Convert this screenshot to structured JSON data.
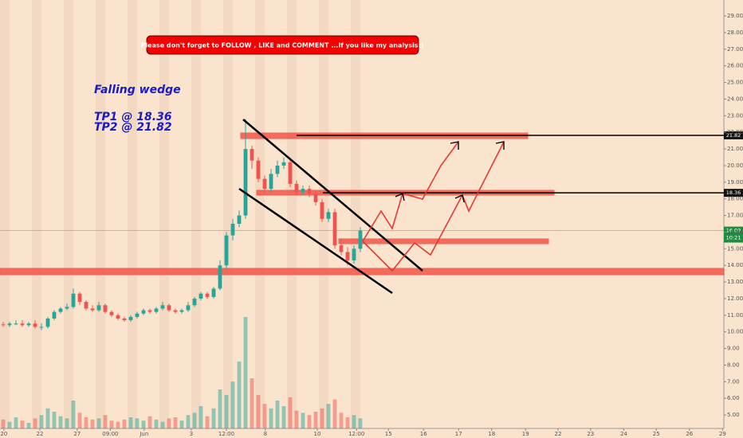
{
  "chart_data": {
    "type": "candlestick",
    "banner": "Please don't forget  to FOLLOW , LIKE and COMMENT ...If you like my analysis:)",
    "annotations": [
      "Falling wedge",
      "TP1 @ 18.36",
      "TP2 @ 21.82"
    ],
    "xlim": [
      0,
      113.5
    ],
    "xticks": [
      {
        "value": 0.6,
        "label": "20"
      },
      {
        "value": 6.25,
        "label": "22"
      },
      {
        "value": 12.1,
        "label": "27"
      },
      {
        "value": 17.3,
        "label": "09:00"
      },
      {
        "value": 22.6,
        "label": "Jun"
      },
      {
        "value": 30,
        "label": "3"
      },
      {
        "value": 35.5,
        "label": "12:00"
      },
      {
        "value": 41.6,
        "label": "8"
      },
      {
        "value": 49.75,
        "label": "10"
      },
      {
        "value": 55.9,
        "label": "12:00"
      },
      {
        "value": 60.9,
        "label": "15"
      },
      {
        "value": 66.4,
        "label": "16"
      },
      {
        "value": 71.9,
        "label": "17"
      },
      {
        "value": 77.1,
        "label": "18"
      },
      {
        "value": 82.4,
        "label": "19"
      },
      {
        "value": 87.5,
        "label": "22"
      },
      {
        "value": 92.6,
        "label": "23"
      },
      {
        "value": 97.8,
        "label": "24"
      },
      {
        "value": 102.9,
        "label": "25"
      },
      {
        "value": 108.1,
        "label": "26"
      },
      {
        "value": 113.3,
        "label": "29"
      }
    ],
    "ylim": [
      4.19,
      29.96
    ],
    "yticks": [
      {
        "value": 5,
        "label": "5.00"
      },
      {
        "value": 6,
        "label": "6.00"
      },
      {
        "value": 7,
        "label": "7.00"
      },
      {
        "value": 8,
        "label": "8.00"
      },
      {
        "value": 9,
        "label": "9.00"
      },
      {
        "value": 10,
        "label": "10.00"
      },
      {
        "value": 11,
        "label": "11.00"
      },
      {
        "value": 12,
        "label": "12.00"
      },
      {
        "value": 13,
        "label": "13.00"
      },
      {
        "value": 14,
        "label": "14.00"
      },
      {
        "value": 15,
        "label": "15.00"
      },
      {
        "value": 16,
        "label": "16.00"
      },
      {
        "value": 17,
        "label": "17.00"
      },
      {
        "value": 18,
        "label": "18.00"
      },
      {
        "value": 19,
        "label": "19.00"
      },
      {
        "value": 20,
        "label": "20.00"
      },
      {
        "value": 21,
        "label": "21.00"
      },
      {
        "value": 22,
        "label": "22.00"
      },
      {
        "value": 23,
        "label": "23.00"
      },
      {
        "value": 24,
        "label": "24.00"
      },
      {
        "value": 25,
        "label": "25.00"
      },
      {
        "value": 26,
        "label": "26.00"
      },
      {
        "value": 27,
        "label": "27.00"
      },
      {
        "value": 28,
        "label": "28.00"
      },
      {
        "value": 29,
        "label": "29.00"
      }
    ],
    "open": [
      10.45,
      10.4,
      10.5,
      10.5,
      10.4,
      10.5,
      10.3,
      10.3,
      10.8,
      11.2,
      11.4,
      11.5,
      12.3,
      11.8,
      11.4,
      11.3,
      11.6,
      11.2,
      11.0,
      10.8,
      10.7,
      10.9,
      11.1,
      11.3,
      11.2,
      11.4,
      11.6,
      11.3,
      11.2,
      11.3,
      11.6,
      12.0,
      12.3,
      12.1,
      12.6,
      14.0,
      15.8,
      16.5,
      17.0,
      21.0,
      20.3,
      19.2,
      18.6,
      19.5,
      20.0,
      20.2,
      18.9,
      18.4,
      18.6,
      18.3,
      17.8,
      16.8,
      17.2,
      15.2,
      14.8,
      14.3,
      15.0
    ],
    "high": [
      10.6,
      10.6,
      10.7,
      10.7,
      10.6,
      10.7,
      10.5,
      10.9,
      11.3,
      11.5,
      11.7,
      12.6,
      12.4,
      11.9,
      11.6,
      11.8,
      11.7,
      11.3,
      11.1,
      10.9,
      11.0,
      11.2,
      11.4,
      11.4,
      11.5,
      11.8,
      11.7,
      11.4,
      11.4,
      11.8,
      12.1,
      12.4,
      12.4,
      12.7,
      14.3,
      16.0,
      16.8,
      17.3,
      22.8,
      21.2,
      20.5,
      19.4,
      19.8,
      20.3,
      20.5,
      20.3,
      19.1,
      18.8,
      18.8,
      18.5,
      18.0,
      17.4,
      17.4,
      15.6,
      15.1,
      15.2,
      16.3
    ],
    "low": [
      10.3,
      10.3,
      10.4,
      10.3,
      10.3,
      10.2,
      10.1,
      10.2,
      10.7,
      11.1,
      11.3,
      11.4,
      11.6,
      11.3,
      11.2,
      11.2,
      11.1,
      10.9,
      10.7,
      10.6,
      10.6,
      10.8,
      11.0,
      11.1,
      11.1,
      11.3,
      11.2,
      11.1,
      11.1,
      11.2,
      11.5,
      11.9,
      12.0,
      12.0,
      12.5,
      13.8,
      15.5,
      16.3,
      16.8,
      19.8,
      19.0,
      18.4,
      18.4,
      19.3,
      19.8,
      18.7,
      18.2,
      18.2,
      18.1,
      17.6,
      16.6,
      16.6,
      15.0,
      14.6,
      14.0,
      14.1,
      14.8
    ],
    "close": [
      10.4,
      10.5,
      10.5,
      10.4,
      10.5,
      10.3,
      10.3,
      10.8,
      11.2,
      11.4,
      11.5,
      12.3,
      11.8,
      11.4,
      11.3,
      11.6,
      11.2,
      11.0,
      10.8,
      10.7,
      10.9,
      11.1,
      11.3,
      11.2,
      11.4,
      11.6,
      11.3,
      11.2,
      11.3,
      11.6,
      12.0,
      12.3,
      12.1,
      12.6,
      14.0,
      15.8,
      16.5,
      17.0,
      21.0,
      20.3,
      19.2,
      18.6,
      19.5,
      20.0,
      20.2,
      18.9,
      18.4,
      18.6,
      18.3,
      17.8,
      16.8,
      17.2,
      15.2,
      14.8,
      14.3,
      15.0,
      16.1
    ],
    "volume": [
      8,
      6,
      10,
      7,
      5,
      9,
      12,
      18,
      15,
      11,
      9,
      25,
      14,
      10,
      8,
      9,
      12,
      7,
      6,
      8,
      10,
      9,
      7,
      11,
      8,
      6,
      9,
      10,
      7,
      12,
      14,
      20,
      11,
      18,
      35,
      30,
      42,
      60,
      100,
      45,
      30,
      22,
      18,
      25,
      20,
      28,
      16,
      14,
      12,
      15,
      18,
      22,
      26,
      14,
      10,
      12,
      9
    ],
    "up_color": "#26a69a",
    "down_color": "#ef5350",
    "level_lines": [
      21.82,
      18.36
    ],
    "last_price": 16.09,
    "last_price_time": "10:21"
  }
}
